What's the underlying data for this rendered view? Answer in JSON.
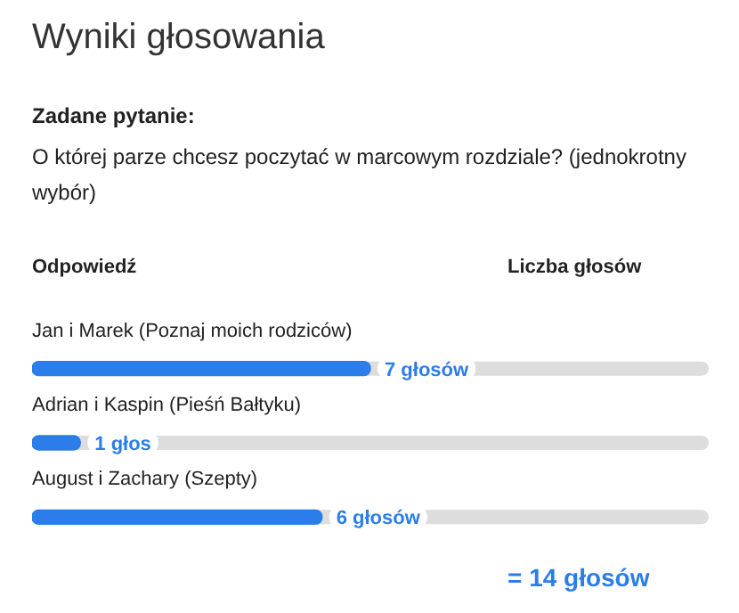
{
  "chart_data": {
    "type": "bar",
    "orientation": "horizontal",
    "title": "Wyniki głosowania",
    "subtitle": "Zadane pytanie:",
    "annotations": [
      "O której parze chcesz poczytać w marcowym rozdziale? (jednokrotny wybór)",
      "= 14 głosów"
    ],
    "ylabel": "Odpowiedź",
    "xlabel": "Liczba głosów",
    "categories": [
      "Jan i Marek (Poznaj moich rodziców)",
      "Adrian i Kaspin (Pieśń Bałtyku)",
      "August i Zachary (Szepty)"
    ],
    "values": [
      7,
      1,
      6
    ],
    "value_labels": [
      "7 głosów",
      "1 głos",
      "6 głosów"
    ],
    "color": "#2b7de9",
    "xlim": [
      0,
      14
    ],
    "tick_labels": "y"
  }
}
